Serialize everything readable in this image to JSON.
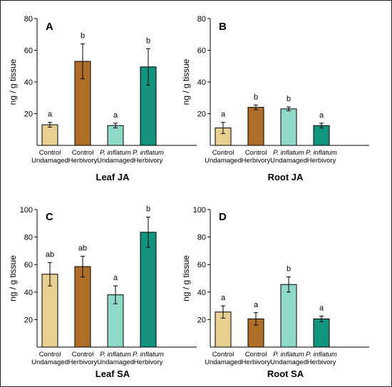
{
  "figure": {
    "ylabel": "ng / g tissue",
    "colors": {
      "control_undamaged": "#E8CF92",
      "control_herbivory": "#B06F29",
      "pinflatum_undamaged": "#8FD9C9",
      "pinflatum_herbivory": "#12937D"
    }
  },
  "chart_data": [
    {
      "type": "bar",
      "panel": "A",
      "title": "Leaf JA",
      "ylabel": "ng / g tissue",
      "ylim": [
        0,
        80
      ],
      "yticks": [
        "20",
        "40",
        "60",
        "80"
      ],
      "categories": [
        {
          "line1": "Control",
          "line1_italic": false,
          "line2": "Undamaged"
        },
        {
          "line1": "Control",
          "line1_italic": false,
          "line2": "Herbivory"
        },
        {
          "line1": "P. inflatum",
          "line1_italic": true,
          "line2": "Undamaged"
        },
        {
          "line1": "P. inflatum",
          "line1_italic": true,
          "line2": "Herbivory"
        }
      ],
      "values": [
        13,
        53,
        12.5,
        49.5
      ],
      "errors": [
        1.5,
        11,
        1.5,
        11.5
      ],
      "letters": [
        "a",
        "b",
        "a",
        "b"
      ]
    },
    {
      "type": "bar",
      "panel": "B",
      "title": "Root JA",
      "ylabel": "ng / g tissue",
      "ylim": [
        0,
        80
      ],
      "yticks": [
        "20",
        "40",
        "60",
        "80"
      ],
      "categories": [
        {
          "line1": "Control",
          "line1_italic": false,
          "line2": "Undamaged"
        },
        {
          "line1": "Control",
          "line1_italic": false,
          "line2": "Herbivory"
        },
        {
          "line1": "P. inflatum",
          "line1_italic": true,
          "line2": "Undamaged"
        },
        {
          "line1": "P. inflatum",
          "line1_italic": true,
          "line2": "Herbivory"
        }
      ],
      "values": [
        11,
        24,
        23,
        12.5
      ],
      "errors": [
        3.5,
        1.5,
        1.2,
        1.5
      ],
      "letters": [
        "a",
        "b",
        "b",
        "a"
      ]
    },
    {
      "type": "bar",
      "panel": "C",
      "title": "Leaf SA",
      "ylabel": "ng / g tissue",
      "ylim": [
        0,
        100
      ],
      "yticks": [
        "20",
        "40",
        "60",
        "80",
        "100"
      ],
      "categories": [
        {
          "line1": "Control",
          "line1_italic": false,
          "line2": "Undamaged"
        },
        {
          "line1": "Control",
          "line1_italic": false,
          "line2": "Herbivory"
        },
        {
          "line1": "P. inflatum",
          "line1_italic": true,
          "line2": "Undamaged"
        },
        {
          "line1": "P. inflatum",
          "line1_italic": true,
          "line2": "Herbivory"
        }
      ],
      "values": [
        53,
        58.5,
        38,
        83.5
      ],
      "errors": [
        8.5,
        7.5,
        6.5,
        11
      ],
      "letters": [
        "ab",
        "ab",
        "a",
        "b"
      ]
    },
    {
      "type": "bar",
      "panel": "D",
      "title": "Root SA",
      "ylabel": "ng / g tissue",
      "ylim": [
        0,
        100
      ],
      "yticks": [
        "20",
        "40",
        "60",
        "80",
        "100"
      ],
      "categories": [
        {
          "line1": "Control",
          "line1_italic": false,
          "line2": "Undamaged"
        },
        {
          "line1": "Control",
          "line1_italic": false,
          "line2": "Herbivory"
        },
        {
          "line1": "P. inflatum",
          "line1_italic": true,
          "line2": "Undamaged"
        },
        {
          "line1": "P. inflatum",
          "line1_italic": true,
          "line2": "Herbivory"
        }
      ],
      "values": [
        25.5,
        20.5,
        45.5,
        20.5
      ],
      "errors": [
        4.5,
        4.5,
        5.5,
        2
      ],
      "letters": [
        "a",
        "a",
        "b",
        "a"
      ]
    }
  ]
}
